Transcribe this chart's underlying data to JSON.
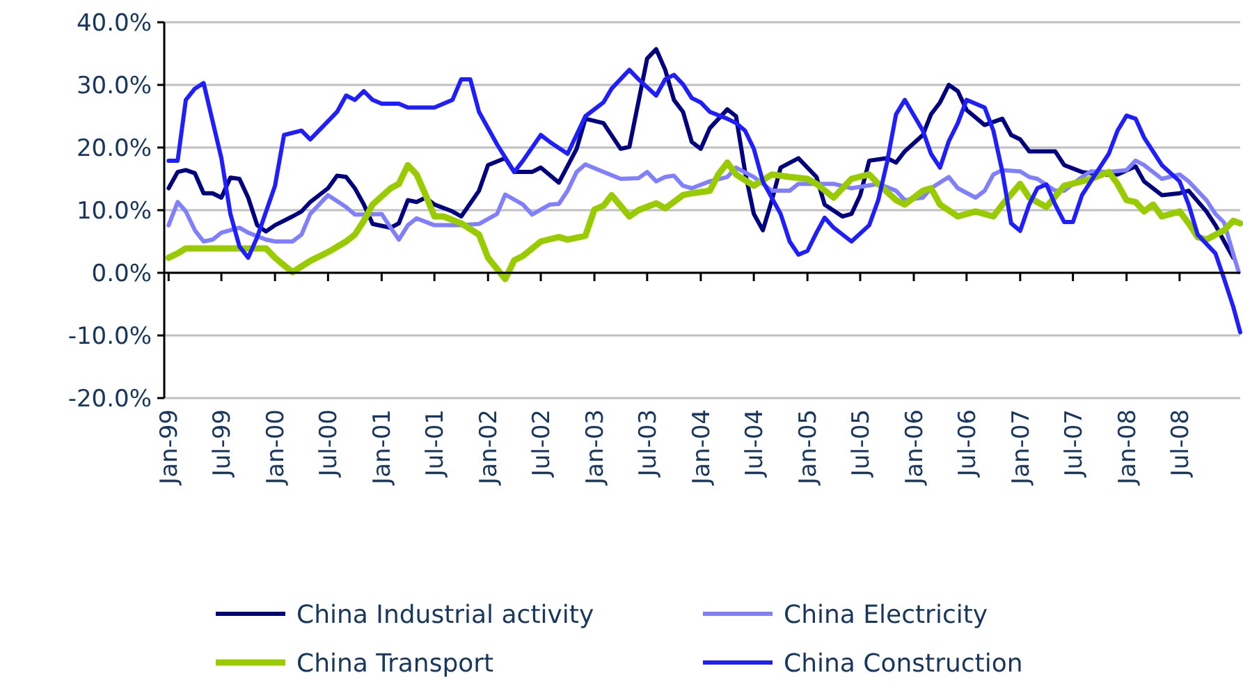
{
  "chart_data": {
    "type": "line",
    "xlim": [
      "1998-12-17",
      "2009-01-25"
    ],
    "ylim": [
      -20,
      40
    ],
    "yticks": [
      {
        "value": -20,
        "label": "-20.0%"
      },
      {
        "value": -10,
        "label": "-10.0%"
      },
      {
        "value": 0,
        "label": "0.0%"
      },
      {
        "value": 10,
        "label": "10.0%"
      },
      {
        "value": 20,
        "label": "20.0%"
      },
      {
        "value": 30,
        "label": "30.0%"
      },
      {
        "value": 40,
        "label": "40.0%"
      }
    ],
    "xticks": [
      {
        "value": "1999-01",
        "label": "Jan-99"
      },
      {
        "value": "1999-07",
        "label": "Jul-99"
      },
      {
        "value": "2000-01",
        "label": "Jan-00"
      },
      {
        "value": "2000-07",
        "label": "Jul-00"
      },
      {
        "value": "2001-01",
        "label": "Jan-01"
      },
      {
        "value": "2001-07",
        "label": "Jul-01"
      },
      {
        "value": "2002-01",
        "label": "Jan-02"
      },
      {
        "value": "2002-07",
        "label": "Jul-02"
      },
      {
        "value": "2003-01",
        "label": "Jan-03"
      },
      {
        "value": "2003-07",
        "label": "Jul-03"
      },
      {
        "value": "2004-01",
        "label": "Jan-04"
      },
      {
        "value": "2004-07",
        "label": "Jul-04"
      },
      {
        "value": "2005-01",
        "label": "Jan-05"
      },
      {
        "value": "2005-07",
        "label": "Jul-05"
      },
      {
        "value": "2006-01",
        "label": "Jan-06"
      },
      {
        "value": "2006-07",
        "label": "Jul-06"
      },
      {
        "value": "2007-01",
        "label": "Jan-07"
      },
      {
        "value": "2007-07",
        "label": "Jul-07"
      },
      {
        "value": "2008-01",
        "label": "Jan-08"
      },
      {
        "value": "2008-07",
        "label": "Jul-08"
      }
    ],
    "grid": "y",
    "legend": "bottom",
    "marker": "none",
    "line_style": "solid",
    "series": [
      {
        "name": "China Industrial activity",
        "color": "#000080",
        "x": [
          "1999-01",
          "1999-02",
          "1999-03",
          "1999-04",
          "1999-05",
          "1999-06",
          "1999-07",
          "1999-08",
          "1999-09",
          "1999-10",
          "1999-11",
          "1999-12",
          "2000-01",
          "2000-03",
          "2000-04",
          "2000-05",
          "2000-07",
          "2000-08",
          "2000-09",
          "2000-10",
          "2000-11",
          "2000-12",
          "2001-02",
          "2001-03",
          "2001-04",
          "2001-05",
          "2001-06",
          "2001-07",
          "2001-09",
          "2001-10",
          "2001-12",
          "2002-01",
          "2002-03",
          "2002-04",
          "2002-06",
          "2002-07",
          "2002-09",
          "2002-11",
          "2002-12",
          "2003-02",
          "2003-04",
          "2003-05",
          "2003-07",
          "2003-08",
          "2003-09",
          "2003-10",
          "2003-11",
          "2003-12",
          "2004-01",
          "2004-02",
          "2004-04",
          "2004-05",
          "2004-06",
          "2004-07",
          "2004-08",
          "2004-09",
          "2004-10",
          "2004-12",
          "2005-02",
          "2005-03",
          "2005-05",
          "2005-06",
          "2005-07",
          "2005-08",
          "2005-10",
          "2005-11",
          "2005-12",
          "2006-02",
          "2006-03",
          "2006-04",
          "2006-05",
          "2006-06",
          "2006-07",
          "2006-09",
          "2006-11",
          "2006-12",
          "2007-01",
          "2007-02",
          "2007-05",
          "2007-06",
          "2007-08",
          "2007-10",
          "2007-12",
          "2008-02",
          "2008-03",
          "2008-05",
          "2008-07",
          "2008-08",
          "2008-10",
          "2008-11",
          "2008-12",
          "2009-01"
        ],
        "values": [
          13.5,
          16.1,
          16.4,
          15.9,
          12.7,
          12.7,
          12,
          15.2,
          15,
          12,
          7.6,
          6.6,
          7.6,
          9,
          9.8,
          11.3,
          13.5,
          15.5,
          15.3,
          13.5,
          10.9,
          7.8,
          7.2,
          7.9,
          11.6,
          11.3,
          12,
          10.9,
          9.8,
          9,
          13.1,
          17.2,
          18.3,
          16.1,
          16.1,
          16.8,
          14.4,
          19.8,
          24.6,
          23.9,
          19.8,
          20.1,
          34.2,
          35.7,
          32.4,
          27.6,
          25.7,
          20.9,
          19.8,
          23.1,
          26.1,
          25,
          16.1,
          9.4,
          6.8,
          11.6,
          16.8,
          18.3,
          15.3,
          10.9,
          9,
          9.4,
          12.4,
          17.9,
          18.3,
          17.6,
          19.4,
          22,
          25.3,
          27.2,
          30,
          29,
          26,
          23.6,
          24.6,
          22,
          21.3,
          19.4,
          19.4,
          17.2,
          16.1,
          15.7,
          15.7,
          17,
          14.6,
          12.4,
          12.7,
          13.1,
          9.8,
          7.6,
          5,
          2.4
        ]
      },
      {
        "name": "China Electricity",
        "color": "#8080ff",
        "x": [
          "1999-01",
          "1999-02",
          "1999-03",
          "1999-04",
          "1999-05",
          "1999-06",
          "1999-07",
          "1999-09",
          "1999-10",
          "1999-12",
          "2000-01",
          "2000-03",
          "2000-04",
          "2000-05",
          "2000-07",
          "2000-09",
          "2000-10",
          "2000-11",
          "2001-01",
          "2001-02",
          "2001-03",
          "2001-04",
          "2001-05",
          "2001-07",
          "2001-10",
          "2001-12",
          "2002-02",
          "2002-03",
          "2002-05",
          "2002-06",
          "2002-08",
          "2002-09",
          "2002-10",
          "2002-11",
          "2002-12",
          "2003-02",
          "2003-04",
          "2003-06",
          "2003-07",
          "2003-08",
          "2003-09",
          "2003-10",
          "2003-11",
          "2003-12",
          "2004-02",
          "2004-04",
          "2004-05",
          "2004-07",
          "2004-09",
          "2004-11",
          "2004-12",
          "2005-02",
          "2005-04",
          "2005-06",
          "2005-09",
          "2005-11",
          "2005-12",
          "2006-02",
          "2006-03",
          "2006-05",
          "2006-06",
          "2006-08",
          "2006-09",
          "2006-10",
          "2006-11",
          "2007-01",
          "2007-02",
          "2007-03",
          "2007-05",
          "2007-06",
          "2007-08",
          "2007-09",
          "2007-11",
          "2008-01",
          "2008-02",
          "2008-03",
          "2008-05",
          "2008-07",
          "2008-08",
          "2008-10",
          "2008-11",
          "2008-12",
          "2009-01",
          "2009-01-20"
        ],
        "values": [
          7.6,
          11.3,
          9.8,
          6.8,
          5,
          5.3,
          6.4,
          7.2,
          6.4,
          5.3,
          5,
          5,
          6.1,
          9.4,
          12.4,
          10.5,
          9.3,
          9.3,
          9.4,
          7.2,
          5.3,
          7.6,
          8.7,
          7.6,
          7.6,
          7.8,
          9.4,
          12.5,
          10.9,
          9.3,
          10.9,
          11,
          13.1,
          16.1,
          17.3,
          16.1,
          15,
          15.1,
          16.1,
          14.6,
          15.3,
          15.5,
          13.9,
          13.5,
          14.6,
          15.3,
          16.8,
          15.3,
          13.1,
          13.1,
          14.2,
          14.2,
          14.2,
          13.5,
          14.2,
          13.1,
          11.6,
          12,
          13.5,
          15.3,
          13.5,
          12,
          13.1,
          15.7,
          16.4,
          16.2,
          15.3,
          15,
          13.1,
          13.1,
          15.3,
          16.2,
          16.1,
          16.4,
          17.9,
          17.2,
          15,
          15.7,
          14.6,
          11.6,
          9.4,
          8,
          3,
          0.1
        ]
      },
      {
        "name": "China Transport",
        "color": "#99cc00",
        "x": [
          "1999-01",
          "1999-02",
          "1999-03",
          "1999-12",
          "2000-01",
          "2000-02",
          "2000-03",
          "2000-05",
          "2000-07",
          "2000-09",
          "2000-10",
          "2000-11",
          "2000-12",
          "2001-02",
          "2001-03",
          "2001-04",
          "2001-05",
          "2001-06",
          "2001-07",
          "2001-08",
          "2001-10",
          "2001-12",
          "2002-01",
          "2002-03",
          "2002-04",
          "2002-05",
          "2002-07",
          "2002-09",
          "2002-10",
          "2002-12",
          "2003-01",
          "2003-02",
          "2003-03",
          "2003-05",
          "2003-06",
          "2003-08",
          "2003-09",
          "2003-11",
          "2003-12",
          "2004-02",
          "2004-03",
          "2004-04",
          "2004-05",
          "2004-07",
          "2004-09",
          "2004-11",
          "2005-01",
          "2005-02",
          "2005-04",
          "2005-06",
          "2005-08",
          "2005-09",
          "2005-11",
          "2005-12",
          "2006-02",
          "2006-03",
          "2006-04",
          "2006-06",
          "2006-08",
          "2006-10",
          "2006-11",
          "2007-01",
          "2007-02",
          "2007-04",
          "2007-06",
          "2007-08",
          "2007-09",
          "2007-11",
          "2007-12",
          "2008-01",
          "2008-02",
          "2008-03",
          "2008-04",
          "2008-05",
          "2008-07",
          "2008-08",
          "2008-09",
          "2008-10",
          "2008-12",
          "2009-01",
          "2009-01-25"
        ],
        "values": [
          2.4,
          3.1,
          3.9,
          3.9,
          2.4,
          1.2,
          0.1,
          1.9,
          3.3,
          5,
          6.1,
          8.3,
          10.9,
          13.5,
          14.2,
          17.2,
          15.7,
          12.4,
          9,
          9,
          7.9,
          6.1,
          2.4,
          -1,
          2,
          2.7,
          5,
          5.7,
          5.3,
          5.9,
          10.1,
          10.7,
          12.4,
          9,
          10,
          11.1,
          10.3,
          12.4,
          12.7,
          13.1,
          15.7,
          17.6,
          15.7,
          13.9,
          15.7,
          15.3,
          15,
          14.2,
          12,
          15,
          15.7,
          14.2,
          11.6,
          10.9,
          13.1,
          13.5,
          10.9,
          9,
          9.8,
          9,
          10.9,
          14.2,
          12,
          10.5,
          13.9,
          14.6,
          15,
          16.1,
          14.2,
          11.6,
          11.3,
          9.8,
          10.9,
          9,
          9.8,
          7.9,
          5.7,
          5.3,
          6.8,
          8.3,
          7.9
        ]
      },
      {
        "name": "China Construction",
        "color": "#1e1eff",
        "x": [
          "1999-01",
          "1999-02",
          "1999-03",
          "1999-04",
          "1999-05",
          "1999-06",
          "1999-07",
          "1999-08",
          "1999-09",
          "1999-10",
          "1999-11",
          "2000-01",
          "2000-02",
          "2000-04",
          "2000-05",
          "2000-07",
          "2000-08",
          "2000-09",
          "2000-10",
          "2000-11",
          "2000-12",
          "2001-01",
          "2001-03",
          "2001-04",
          "2001-07",
          "2001-09",
          "2001-10",
          "2001-11",
          "2001-12",
          "2002-02",
          "2002-04",
          "2002-05",
          "2002-07",
          "2002-08",
          "2002-10",
          "2002-12",
          "2003-02",
          "2003-03",
          "2003-05",
          "2003-06",
          "2003-08",
          "2003-09",
          "2003-10",
          "2003-11",
          "2003-12",
          "2004-01",
          "2004-02",
          "2004-04",
          "2004-05",
          "2004-06",
          "2004-07",
          "2004-08",
          "2004-10",
          "2004-11",
          "2004-12",
          "2005-01",
          "2005-02",
          "2005-03",
          "2005-04",
          "2005-06",
          "2005-08",
          "2005-09",
          "2005-10",
          "2005-11",
          "2005-12",
          "2006-02",
          "2006-03",
          "2006-04",
          "2006-05",
          "2006-06",
          "2006-07",
          "2006-09",
          "2006-10",
          "2006-11",
          "2006-12",
          "2007-01",
          "2007-02",
          "2007-03",
          "2007-04",
          "2007-05",
          "2007-06",
          "2007-07",
          "2007-08",
          "2007-10",
          "2007-11",
          "2007-12",
          "2008-01",
          "2008-02",
          "2008-03",
          "2008-05",
          "2008-07",
          "2008-08",
          "2008-09",
          "2008-11",
          "2008-12",
          "2009-01",
          "2009-01-25"
        ],
        "values": [
          17.9,
          17.9,
          27.6,
          29.4,
          30.3,
          24.2,
          18.3,
          9.4,
          4.2,
          2.4,
          5.7,
          13.9,
          22,
          22.7,
          21.3,
          24.2,
          25.7,
          28.3,
          27.6,
          29,
          27.6,
          27,
          27,
          26.4,
          26.4,
          27.6,
          30.9,
          30.9,
          25.7,
          20.5,
          16.1,
          17.9,
          22,
          20.9,
          19,
          25,
          27.2,
          29.4,
          32.4,
          30.9,
          28.3,
          30.9,
          31.6,
          30.1,
          27.9,
          27.2,
          25.7,
          24.6,
          23.9,
          22.7,
          19.8,
          14.6,
          9.4,
          5,
          2.9,
          3.5,
          6.4,
          8.8,
          7.2,
          5,
          7.6,
          11.6,
          17.6,
          25.3,
          27.6,
          22.7,
          19,
          16.8,
          21,
          23.9,
          27.6,
          26.4,
          22.7,
          16.1,
          7.9,
          6.7,
          10.9,
          13.5,
          14.1,
          10.9,
          8.1,
          8.1,
          12.4,
          16.8,
          19,
          22.7,
          25.1,
          24.6,
          21.6,
          17.2,
          14.6,
          10.9,
          6.1,
          3.1,
          -1,
          -5.4,
          -9.5
        ]
      }
    ]
  }
}
